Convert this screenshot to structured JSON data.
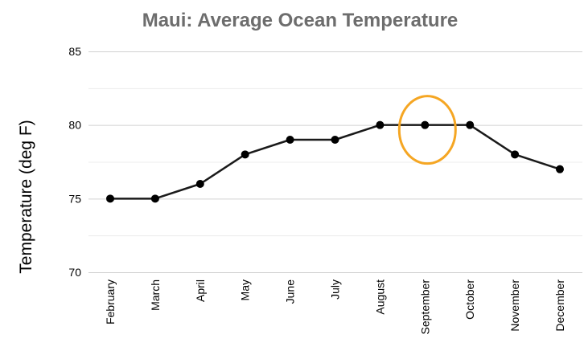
{
  "chart_data": {
    "type": "line",
    "title": "Maui: Average Ocean Temperature",
    "xlabel": "",
    "ylabel": "Temperature (deg F)",
    "ylim": [
      70,
      85
    ],
    "yticks": [
      70,
      75,
      80,
      85
    ],
    "minor_gridlines": [
      72.5,
      77.5,
      82.5
    ],
    "grid": true,
    "categories": [
      "February",
      "March",
      "April",
      "May",
      "June",
      "July",
      "August",
      "September",
      "October",
      "November",
      "December"
    ],
    "series": [
      {
        "values": [
          75,
          75,
          76,
          78,
          79,
          79,
          80,
          80,
          80,
          78,
          77
        ]
      }
    ],
    "highlight": {
      "category": "September",
      "value": 80,
      "color": "#f5a623"
    },
    "line_color": "#1a1a1a",
    "title_color": "#6d6d6d"
  }
}
